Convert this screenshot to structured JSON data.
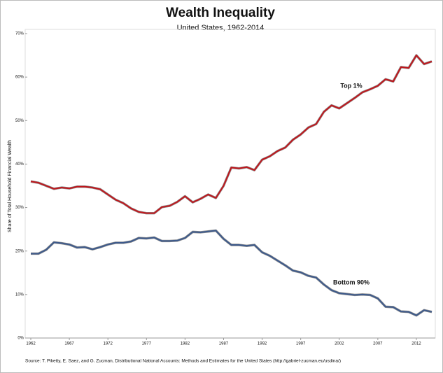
{
  "chart_data": {
    "type": "line",
    "title": "Wealth Inequality",
    "subtitle": "United States, 1962-2014",
    "y_label": "Share of Total Household Financial Wealth",
    "source": "Source: T. Piketty, E. Saez, and G. Zucman,  Distributional National Accounts: Methods and Estimates for the United States (http://gabriel-zucman.eu/usdina/)",
    "x": [
      1962,
      1963,
      1964,
      1965,
      1966,
      1967,
      1968,
      1969,
      1970,
      1971,
      1972,
      1973,
      1974,
      1975,
      1976,
      1977,
      1978,
      1979,
      1980,
      1981,
      1982,
      1983,
      1984,
      1985,
      1986,
      1987,
      1988,
      1989,
      1990,
      1991,
      1992,
      1993,
      1994,
      1995,
      1996,
      1997,
      1998,
      1999,
      2000,
      2001,
      2002,
      2003,
      2004,
      2005,
      2006,
      2007,
      2008,
      2009,
      2010,
      2011,
      2012,
      2013,
      2014
    ],
    "series": [
      {
        "name": "Top 1%",
        "color": "#c0161c",
        "values": [
          36.0,
          35.7,
          35.0,
          34.3,
          34.6,
          34.4,
          34.8,
          34.8,
          34.6,
          34.2,
          33.0,
          31.8,
          31.0,
          29.8,
          29.0,
          28.7,
          28.7,
          30.1,
          30.4,
          31.3,
          32.6,
          31.2,
          32.0,
          33.0,
          32.2,
          35.0,
          39.2,
          39.0,
          39.3,
          38.6,
          41.0,
          41.8,
          43.0,
          43.8,
          45.6,
          46.8,
          48.4,
          49.2,
          52.0,
          53.5,
          52.8,
          54.0,
          55.2,
          56.5,
          57.2,
          58.0,
          59.5,
          59.0,
          62.3,
          62.1,
          65.0,
          63.0,
          63.6
        ]
      },
      {
        "name": "Bottom 90%",
        "color": "#3d5a8c",
        "values": [
          19.4,
          19.4,
          20.3,
          22.0,
          21.8,
          21.5,
          20.8,
          20.9,
          20.4,
          20.9,
          21.5,
          21.9,
          21.9,
          22.2,
          23.0,
          22.9,
          23.1,
          22.3,
          22.3,
          22.4,
          23.0,
          24.4,
          24.3,
          24.5,
          24.7,
          22.8,
          21.4,
          21.4,
          21.2,
          21.4,
          19.7,
          18.9,
          17.8,
          16.7,
          15.5,
          15.1,
          14.3,
          13.9,
          12.3,
          11.0,
          10.3,
          10.1,
          9.9,
          10.0,
          9.9,
          9.1,
          7.2,
          7.1,
          6.1,
          6.0,
          5.2,
          6.4,
          6.0
        ]
      }
    ],
    "xlim": [
      1962,
      2014
    ],
    "xticks": [
      1962,
      1967,
      1972,
      1977,
      1982,
      1987,
      1992,
      1997,
      2002,
      2007,
      2012
    ],
    "ylim": [
      0,
      70
    ],
    "yticks": [
      {
        "value": 0,
        "label": "0%"
      },
      {
        "value": 10,
        "label": "10%"
      },
      {
        "value": 20,
        "label": "20%"
      },
      {
        "value": 30,
        "label": "30%"
      },
      {
        "value": 40,
        "label": "40%"
      },
      {
        "value": 50,
        "label": "50%"
      },
      {
        "value": 60,
        "label": "60%"
      },
      {
        "value": 70,
        "label": "70%"
      }
    ],
    "grid": false
  }
}
